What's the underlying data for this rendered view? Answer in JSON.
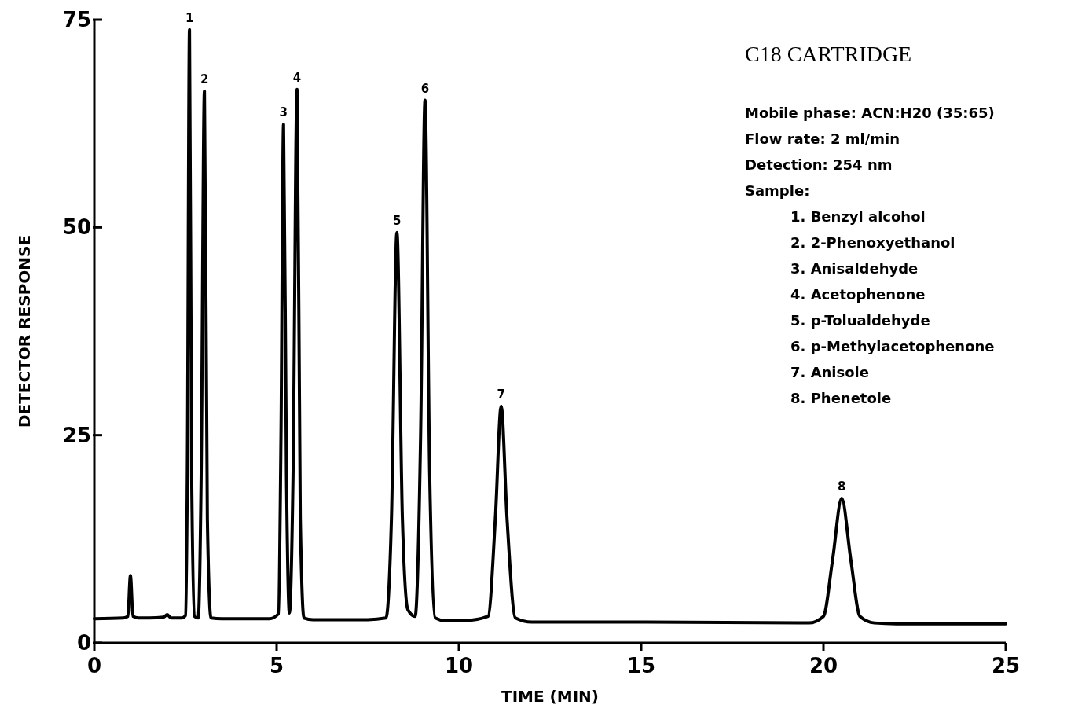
{
  "chart_data": {
    "type": "line",
    "title": "C18 CARTRIDGE",
    "xlabel": "TIME (MIN)",
    "ylabel": "DETECTOR RESPONSE",
    "xlim": [
      0,
      25
    ],
    "xticks": [
      0,
      5,
      10,
      15,
      20,
      25
    ],
    "ylim": [
      0,
      75
    ],
    "yticks": [
      0,
      25,
      50,
      75
    ],
    "grid": false,
    "marker": "none",
    "line_style": "solid",
    "series": [
      {
        "color": "#000000",
        "x": [
          0,
          0.8,
          0.92,
          0.99,
          1.06,
          1.2,
          1.5,
          1.9,
          2.0,
          2.1,
          2.4,
          2.5,
          2.55,
          2.61,
          2.67,
          2.75,
          2.85,
          2.93,
          3.02,
          3.1,
          3.2,
          3.5,
          4.8,
          5.05,
          5.12,
          5.19,
          5.27,
          5.35,
          5.45,
          5.56,
          5.65,
          5.75,
          6.0,
          7.5,
          8.0,
          8.15,
          8.3,
          8.45,
          8.6,
          8.8,
          8.95,
          9.07,
          9.2,
          9.35,
          9.6,
          10.2,
          10.8,
          11.0,
          11.16,
          11.32,
          11.55,
          12.0,
          15,
          19.6,
          20.0,
          20.25,
          20.5,
          20.75,
          21.0,
          21.4,
          22,
          25
        ],
        "values": [
          2.9,
          3.0,
          3.2,
          8.1,
          3.2,
          3.0,
          3.0,
          3.1,
          3.4,
          3.0,
          3.0,
          3.3,
          20,
          73.8,
          20,
          3.2,
          3.0,
          20,
          66.4,
          15,
          3.0,
          2.9,
          2.9,
          3.5,
          25,
          62.4,
          20,
          3.6,
          20,
          66.6,
          15,
          3.0,
          2.8,
          2.8,
          3.0,
          15,
          49.4,
          15,
          4.0,
          3.2,
          25,
          65.3,
          20,
          3.0,
          2.7,
          2.7,
          3.2,
          15,
          28.5,
          15,
          3.0,
          2.5,
          2.5,
          2.4,
          3.2,
          10,
          17.4,
          10,
          3.2,
          2.4,
          2.3,
          2.3
        ]
      }
    ],
    "annotations": [
      {
        "text": "1",
        "x": 2.61,
        "y": 73.8
      },
      {
        "text": "2",
        "x": 3.02,
        "y": 66.4
      },
      {
        "text": "3",
        "x": 5.19,
        "y": 62.4
      },
      {
        "text": "4",
        "x": 5.56,
        "y": 66.6
      },
      {
        "text": "5",
        "x": 8.3,
        "y": 49.4
      },
      {
        "text": "6",
        "x": 9.07,
        "y": 65.3
      },
      {
        "text": "7",
        "x": 11.16,
        "y": 28.5
      },
      {
        "text": "8",
        "x": 20.5,
        "y": 17.4
      },
      "Mobile phase: ACN:H20 (35:65)",
      "Flow rate: 2 ml/min",
      "Detection: 254 nm",
      "Sample:",
      "1. Benzyl alcohol",
      "2. 2-Phenoxyethanol",
      "3. Anisaldehyde",
      "4. Acetophenone",
      "5. p-Tolualdehyde",
      "6. p-Methylacetophenone",
      "7. Anisole",
      "8. Phenetole"
    ]
  }
}
